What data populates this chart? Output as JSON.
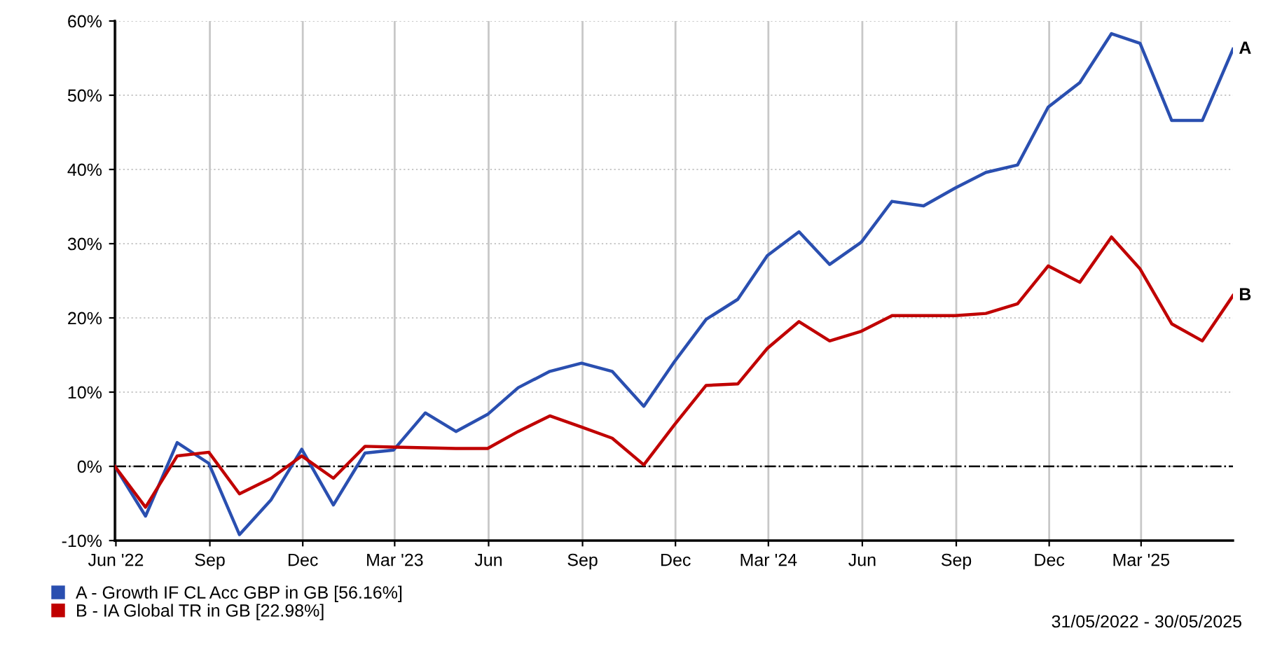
{
  "chart_data": {
    "type": "line",
    "x": [
      "2022-05-31",
      "2022-06-30",
      "2022-07-31",
      "2022-08-31",
      "2022-09-30",
      "2022-10-31",
      "2022-11-30",
      "2022-12-31",
      "2023-01-31",
      "2023-02-28",
      "2023-03-31",
      "2023-04-30",
      "2023-05-31",
      "2023-06-30",
      "2023-07-31",
      "2023-08-31",
      "2023-09-30",
      "2023-10-31",
      "2023-11-30",
      "2023-12-31",
      "2024-01-31",
      "2024-02-29",
      "2024-03-31",
      "2024-04-30",
      "2024-05-31",
      "2024-06-30",
      "2024-07-31",
      "2024-08-31",
      "2024-09-30",
      "2024-10-31",
      "2024-11-30",
      "2024-12-31",
      "2025-01-31",
      "2025-02-28",
      "2025-03-31",
      "2025-04-30",
      "2025-05-30"
    ],
    "series": [
      {
        "name": "A - Growth IF CL Acc GBP in GB [56.16%]",
        "color": "#2a4fb0",
        "values": [
          0,
          -6.7,
          3.2,
          0.4,
          -9.2,
          -4.5,
          2.3,
          -5.2,
          1.8,
          2.2,
          7.2,
          4.7,
          7.0,
          10.6,
          12.8,
          13.9,
          12.8,
          8.1,
          14.1,
          19.8,
          22.5,
          28.4,
          31.6,
          27.2,
          30.2,
          35.7,
          35.1,
          37.5,
          39.6,
          40.6,
          48.4,
          51.7,
          58.3,
          57.0,
          46.6,
          46.6,
          56.2
        ]
      },
      {
        "name": "B - IA Global TR in GB [22.98%]",
        "color": "#c00000",
        "values": [
          0,
          -5.5,
          1.4,
          1.9,
          -3.7,
          -1.6,
          1.4,
          -1.6,
          2.7,
          2.6,
          2.5,
          2.4,
          2.4,
          4.7,
          6.8,
          5.3,
          3.8,
          0.2,
          5.6,
          10.9,
          11.1,
          15.9,
          19.5,
          16.9,
          18.2,
          20.3,
          20.3,
          20.3,
          20.6,
          21.9,
          27.0,
          24.8,
          30.9,
          26.6,
          19.2,
          16.9,
          23.0
        ]
      }
    ],
    "xlim": [
      "2022-05-31",
      "2025-05-30"
    ],
    "xticks": [
      {
        "value": "2022-06-01",
        "label": "Jun '22"
      },
      {
        "value": "2022-09-01",
        "label": "Sep"
      },
      {
        "value": "2022-12-01",
        "label": "Dec"
      },
      {
        "value": "2023-03-01",
        "label": "Mar '23"
      },
      {
        "value": "2023-06-01",
        "label": "Jun"
      },
      {
        "value": "2023-09-01",
        "label": "Sep"
      },
      {
        "value": "2023-12-01",
        "label": "Dec"
      },
      {
        "value": "2024-03-01",
        "label": "Mar '24"
      },
      {
        "value": "2024-06-01",
        "label": "Jun"
      },
      {
        "value": "2024-09-01",
        "label": "Sep"
      },
      {
        "value": "2024-12-01",
        "label": "Dec"
      },
      {
        "value": "2025-03-01",
        "label": "Mar '25"
      }
    ],
    "ylim": [
      -10,
      60
    ],
    "yticks": [
      {
        "value": -10,
        "label": "-10%"
      },
      {
        "value": 0,
        "label": "0%"
      },
      {
        "value": 10,
        "label": "10%"
      },
      {
        "value": 20,
        "label": "20%"
      },
      {
        "value": 30,
        "label": "30%"
      },
      {
        "value": 40,
        "label": "40%"
      },
      {
        "value": 50,
        "label": "50%"
      },
      {
        "value": 60,
        "label": "60%"
      }
    ],
    "grid": true,
    "legend": "bottom left",
    "marker": "none",
    "line_style": "solid",
    "ref_lines": [
      {
        "axis": "y",
        "value": 0,
        "color": "#000000",
        "line_style": "dashdot"
      }
    ],
    "annotations": [
      {
        "text": "A",
        "x": "2025-05-30",
        "y": 56.2
      },
      {
        "text": "B",
        "x": "2025-05-30",
        "y": 23.0
      },
      "31/05/2022 - 30/05/2025"
    ]
  }
}
